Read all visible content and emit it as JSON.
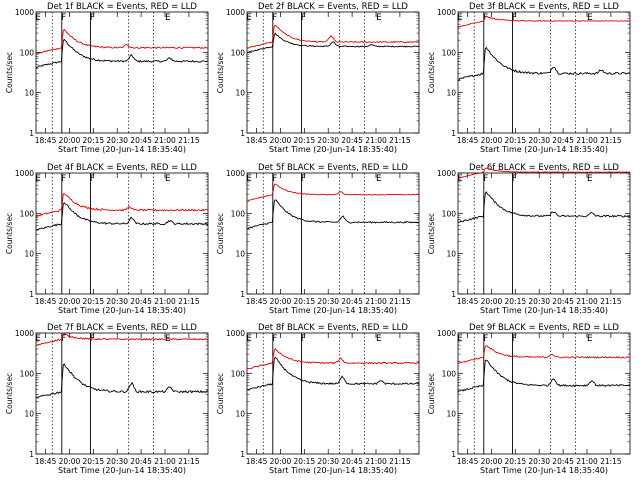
{
  "page": {
    "background": "#ffffff"
  },
  "chart_data": {
    "type": "line",
    "layout": "3x3 grid",
    "colors": {
      "events": "#000000",
      "lld": "#e00000",
      "frame": "#000000"
    },
    "shared": {
      "xlabel": "Start Time (20-Jun-14 18:35:40)",
      "ylabel": "Counts/sec",
      "xticks": [
        "18:45",
        "20:00",
        "20:15",
        "20:30",
        "20:45",
        "21:00",
        "21:15"
      ],
      "x_range_minutes": [
        0,
        180
      ],
      "ylim": [
        1,
        1000
      ],
      "ylog": true,
      "yticks": [
        "1",
        "10",
        "100",
        "1000"
      ],
      "vlines_solid_min": [
        27,
        57
      ],
      "vlines_dotted_min": [
        17,
        97,
        123
      ],
      "flag_labels": [
        {
          "text": "E",
          "at_min": 2
        },
        {
          "text": "F",
          "at_min": 29
        },
        {
          "text": "F",
          "at_min": 59
        },
        {
          "text": "E",
          "at_min": 138
        }
      ]
    },
    "panels": [
      {
        "title": "Det 1f BLACK = Events, RED = LLD",
        "series": [
          {
            "name": "Events",
            "color": "#000000",
            "baseline": 60,
            "peak": 220,
            "noise": 0.05,
            "bumps": [
              [
                100,
                1.4
              ],
              [
                140,
                1.2
              ]
            ]
          },
          {
            "name": "LLD",
            "color": "#e00000",
            "baseline": 130,
            "peak": 380,
            "noise": 0.04,
            "bumps": [
              [
                95,
                1.2
              ]
            ]
          }
        ]
      },
      {
        "title": "Det 2f BLACK = Events, RED = LLD",
        "series": [
          {
            "name": "Events",
            "color": "#000000",
            "baseline": 140,
            "peak": 300,
            "noise": 0.03,
            "bumps": [
              [
                90,
                1.3
              ],
              [
                130,
                1.1
              ]
            ]
          },
          {
            "name": "LLD",
            "color": "#e00000",
            "baseline": 180,
            "peak": 500,
            "noise": 0.03,
            "bumps": [
              [
                88,
                1.4
              ]
            ]
          }
        ]
      },
      {
        "title": "Det 3f BLACK = Events, RED = LLD",
        "series": [
          {
            "name": "Events",
            "color": "#000000",
            "baseline": 30,
            "peak": 140,
            "noise": 0.06,
            "bumps": [
              [
                100,
                1.5
              ],
              [
                150,
                1.2
              ]
            ]
          },
          {
            "name": "LLD",
            "color": "#e00000",
            "baseline": 600,
            "peak": 800,
            "noise": 0.02,
            "bumps": []
          }
        ]
      },
      {
        "title": "Det 4f BLACK = Events, RED = LLD",
        "series": [
          {
            "name": "Events",
            "color": "#000000",
            "baseline": 55,
            "peak": 200,
            "noise": 0.05,
            "bumps": [
              [
                100,
                1.4
              ],
              [
                140,
                1.2
              ]
            ]
          },
          {
            "name": "LLD",
            "color": "#e00000",
            "baseline": 120,
            "peak": 330,
            "noise": 0.05,
            "bumps": [
              [
                98,
                1.2
              ]
            ]
          }
        ]
      },
      {
        "title": "Det 5f BLACK = Events, RED = LLD",
        "series": [
          {
            "name": "Events",
            "color": "#000000",
            "baseline": 60,
            "peak": 230,
            "noise": 0.04,
            "bumps": [
              [
                100,
                1.4
              ]
            ]
          },
          {
            "name": "LLD",
            "color": "#e00000",
            "baseline": 290,
            "peak": 560,
            "noise": 0.02,
            "bumps": [
              [
                98,
                1.2
              ]
            ]
          }
        ]
      },
      {
        "title": "Det 6f BLACK = Events, RED = LLD",
        "series": [
          {
            "name": "Events",
            "color": "#000000",
            "baseline": 85,
            "peak": 360,
            "noise": 0.05,
            "bumps": [
              [
                100,
                1.3
              ],
              [
                140,
                1.2
              ]
            ]
          },
          {
            "name": "LLD",
            "color": "#e00000",
            "baseline": 1050,
            "peak": 1350,
            "noise": 0.01,
            "bumps": []
          }
        ]
      },
      {
        "title": "Det 7f BLACK = Events, RED = LLD",
        "series": [
          {
            "name": "Events",
            "color": "#000000",
            "baseline": 35,
            "peak": 180,
            "noise": 0.06,
            "bumps": [
              [
                100,
                1.6
              ],
              [
                140,
                1.3
              ]
            ]
          },
          {
            "name": "LLD",
            "color": "#e00000",
            "baseline": 700,
            "peak": 950,
            "noise": 0.04,
            "bumps": []
          }
        ]
      },
      {
        "title": "Det 8f BLACK = Events, RED = LLD",
        "series": [
          {
            "name": "Events",
            "color": "#000000",
            "baseline": 55,
            "peak": 260,
            "noise": 0.05,
            "bumps": [
              [
                100,
                1.5
              ],
              [
                140,
                1.2
              ]
            ]
          },
          {
            "name": "LLD",
            "color": "#e00000",
            "baseline": 180,
            "peak": 420,
            "noise": 0.04,
            "bumps": [
              [
                98,
                1.3
              ]
            ]
          }
        ]
      },
      {
        "title": "Det 9f BLACK = Events, RED = LLD",
        "series": [
          {
            "name": "Events",
            "color": "#000000",
            "baseline": 50,
            "peak": 230,
            "noise": 0.05,
            "bumps": [
              [
                100,
                1.5
              ],
              [
                140,
                1.3
              ]
            ]
          },
          {
            "name": "LLD",
            "color": "#e00000",
            "baseline": 250,
            "peak": 520,
            "noise": 0.04,
            "bumps": [
              [
                98,
                1.2
              ]
            ]
          }
        ]
      }
    ]
  }
}
